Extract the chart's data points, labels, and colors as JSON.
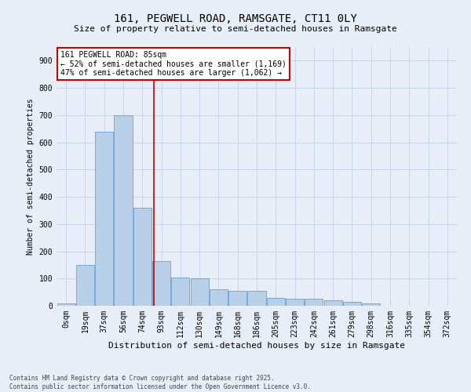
{
  "title1": "161, PEGWELL ROAD, RAMSGATE, CT11 0LY",
  "title2": "Size of property relative to semi-detached houses in Ramsgate",
  "xlabel": "Distribution of semi-detached houses by size in Ramsgate",
  "ylabel": "Number of semi-detached properties",
  "annotation_title": "161 PEGWELL ROAD: 85sqm",
  "annotation_line1": "← 52% of semi-detached houses are smaller (1,169)",
  "annotation_line2": "47% of semi-detached houses are larger (1,062) →",
  "footer1": "Contains HM Land Registry data © Crown copyright and database right 2025.",
  "footer2": "Contains public sector information licensed under the Open Government Licence v3.0.",
  "categories": [
    "0sqm",
    "19sqm",
    "37sqm",
    "56sqm",
    "74sqm",
    "93sqm",
    "112sqm",
    "130sqm",
    "149sqm",
    "168sqm",
    "186sqm",
    "205sqm",
    "223sqm",
    "242sqm",
    "261sqm",
    "279sqm",
    "298sqm",
    "316sqm",
    "335sqm",
    "354sqm",
    "372sqm"
  ],
  "bar_heights": [
    10,
    150,
    640,
    700,
    360,
    165,
    105,
    100,
    60,
    55,
    55,
    30,
    25,
    25,
    20,
    13,
    8,
    0,
    0,
    0,
    0
  ],
  "bar_color": "#b8cfe8",
  "bar_edge_color": "#6a9fd8",
  "vline_color": "#cc0000",
  "vline_x": 4.6,
  "grid_color": "#c8d4e8",
  "background_color": "#e8eef8",
  "annotation_box_color": "#ffffff",
  "annotation_box_edge": "#cc0000",
  "ylim": [
    0,
    950
  ],
  "yticks": [
    0,
    100,
    200,
    300,
    400,
    500,
    600,
    700,
    800,
    900
  ],
  "title1_fontsize": 10,
  "title2_fontsize": 8,
  "xlabel_fontsize": 8,
  "ylabel_fontsize": 7,
  "tick_fontsize": 7,
  "annot_fontsize": 7,
  "footer_fontsize": 5.5
}
